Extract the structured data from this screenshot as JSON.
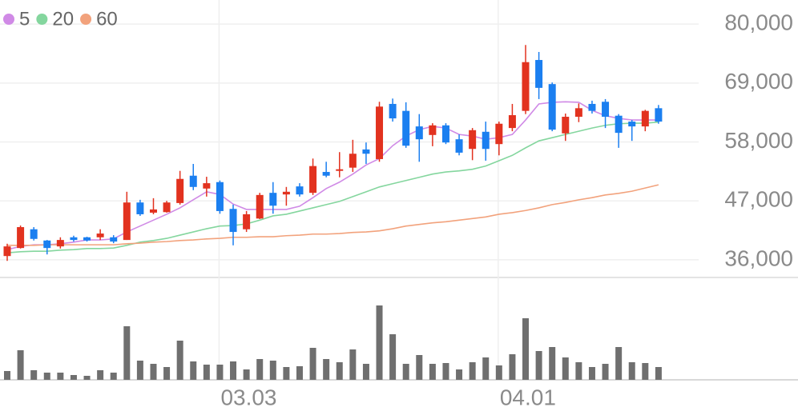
{
  "chart_data": [
    {
      "type": "candlestick",
      "categories": [
        null,
        null,
        null,
        null,
        null,
        null,
        null,
        null,
        null,
        null,
        null,
        null,
        null,
        null,
        null,
        null,
        "03.03",
        null,
        null,
        null,
        null,
        null,
        null,
        null,
        null,
        null,
        null,
        null,
        null,
        null,
        null,
        null,
        null,
        null,
        null,
        null,
        null,
        "04.01",
        null,
        null,
        null,
        null,
        null,
        null,
        null,
        null,
        null,
        null,
        null,
        null
      ],
      "open": [
        36700,
        38200,
        41700,
        39600,
        38500,
        40200,
        40200,
        40200,
        40200,
        39700,
        46700,
        44800,
        44900,
        46600,
        51700,
        49300,
        50500,
        45500,
        41700,
        43700,
        48500,
        48200,
        49700,
        48500,
        52400,
        52600,
        53200,
        56600,
        54800,
        65100,
        63800,
        60900,
        59300,
        61100,
        58500,
        56700,
        59900,
        57600,
        60600,
        63800,
        73300,
        68800,
        59600,
        62700,
        65100,
        65500,
        62900,
        61800,
        60900,
        64300
      ],
      "high": [
        39000,
        42400,
        42100,
        39700,
        40200,
        40500,
        40300,
        41700,
        40600,
        48700,
        47200,
        47500,
        47000,
        52600,
        53900,
        51500,
        50800,
        46300,
        45100,
        48500,
        50500,
        49600,
        50300,
        54900,
        54300,
        56100,
        58400,
        57900,
        65500,
        66100,
        65400,
        63200,
        61500,
        61500,
        59400,
        60600,
        61800,
        61800,
        65100,
        76100,
        74800,
        69100,
        63300,
        65200,
        65700,
        66000,
        63200,
        62100,
        64000,
        64900
      ],
      "low": [
        35800,
        38100,
        39600,
        37000,
        38100,
        39400,
        39400,
        39700,
        39100,
        39700,
        44200,
        44500,
        44800,
        46300,
        49000,
        47800,
        44600,
        38700,
        41200,
        43600,
        44600,
        46100,
        47800,
        48100,
        51400,
        51400,
        52400,
        53900,
        54300,
        61800,
        56900,
        54300,
        57200,
        57600,
        55500,
        54600,
        54500,
        55500,
        60000,
        63200,
        66000,
        60000,
        58200,
        61700,
        63300,
        60600,
        56900,
        58200,
        60000,
        61400
      ],
      "close": [
        38500,
        42100,
        39900,
        38200,
        39700,
        39700,
        39600,
        40900,
        39400,
        46700,
        44500,
        45400,
        46700,
        51100,
        49600,
        50300,
        45100,
        41200,
        44500,
        48100,
        46100,
        48700,
        48200,
        53500,
        51700,
        52900,
        55800,
        55800,
        64600,
        62400,
        57300,
        58500,
        61100,
        57900,
        56000,
        60200,
        56700,
        61400,
        63000,
        72900,
        68100,
        60300,
        62700,
        64300,
        63800,
        62700,
        59700,
        60900,
        63800,
        61800
      ],
      "up_color": "#e2321f",
      "down_color": "#1b7ff0",
      "series": [
        {
          "name": "5",
          "color": "#d08ae6",
          "values": [
            37900,
            38500,
            38800,
            38800,
            39000,
            39300,
            39700,
            39700,
            39900,
            41200,
            42300,
            43400,
            44500,
            45700,
            47200,
            48700,
            48200,
            46400,
            45400,
            45400,
            45400,
            45400,
            46000,
            47600,
            49300,
            50500,
            52000,
            53700,
            54900,
            57300,
            59100,
            60300,
            60900,
            60600,
            59400,
            59100,
            58500,
            58800,
            59400,
            62100,
            65100,
            65400,
            65500,
            65400,
            63900,
            62900,
            62400,
            62100,
            62100,
            62100
          ]
        },
        {
          "name": "20",
          "color": "#84d69e",
          "values": [
            37300,
            37500,
            37600,
            37600,
            37800,
            37900,
            38100,
            38100,
            38200,
            38700,
            39300,
            39600,
            40000,
            40600,
            41200,
            41800,
            42300,
            42400,
            42700,
            43400,
            44200,
            44500,
            45100,
            45700,
            46300,
            46900,
            47800,
            48700,
            49600,
            50200,
            50800,
            51400,
            52000,
            52400,
            52600,
            52900,
            53500,
            54500,
            55500,
            56900,
            58200,
            58800,
            59400,
            60000,
            60600,
            61100,
            61400,
            61500,
            61500,
            61700
          ]
        },
        {
          "name": "60",
          "color": "#f2a27c",
          "values": [
            38700,
            38700,
            38700,
            38800,
            38800,
            38800,
            38800,
            38800,
            38800,
            39000,
            39100,
            39300,
            39400,
            39600,
            39700,
            39900,
            40000,
            40200,
            40200,
            40300,
            40300,
            40500,
            40600,
            40800,
            40800,
            40900,
            41100,
            41200,
            41400,
            41800,
            42300,
            42600,
            42900,
            43100,
            43400,
            43700,
            44000,
            44500,
            44800,
            45200,
            45700,
            46300,
            46700,
            47200,
            47600,
            48100,
            48400,
            48800,
            49400,
            50000
          ]
        }
      ],
      "ylim": [
        32700,
        84500
      ],
      "yticks": [
        {
          "value": 80000,
          "label": "80,000"
        },
        {
          "value": 69000,
          "label": "69,000"
        },
        {
          "value": 58000,
          "label": "58,000"
        },
        {
          "value": 47000,
          "label": "47,000"
        },
        {
          "value": 36000,
          "label": "36,000"
        }
      ],
      "grid": true,
      "legend": "top-left"
    },
    {
      "type": "bar",
      "color": "#6f6f6f",
      "values": [
        11,
        37,
        12,
        9,
        9,
        6,
        5,
        12,
        9,
        67,
        24,
        20,
        16,
        49,
        23,
        19,
        19,
        23,
        13,
        26,
        24,
        16,
        17,
        40,
        26,
        22,
        38,
        20,
        93,
        57,
        20,
        31,
        20,
        21,
        13,
        22,
        28,
        18,
        32,
        77,
        36,
        41,
        28,
        22,
        16,
        20,
        41,
        22,
        21,
        16
      ],
      "ylim": [
        0,
        100
      ]
    }
  ]
}
